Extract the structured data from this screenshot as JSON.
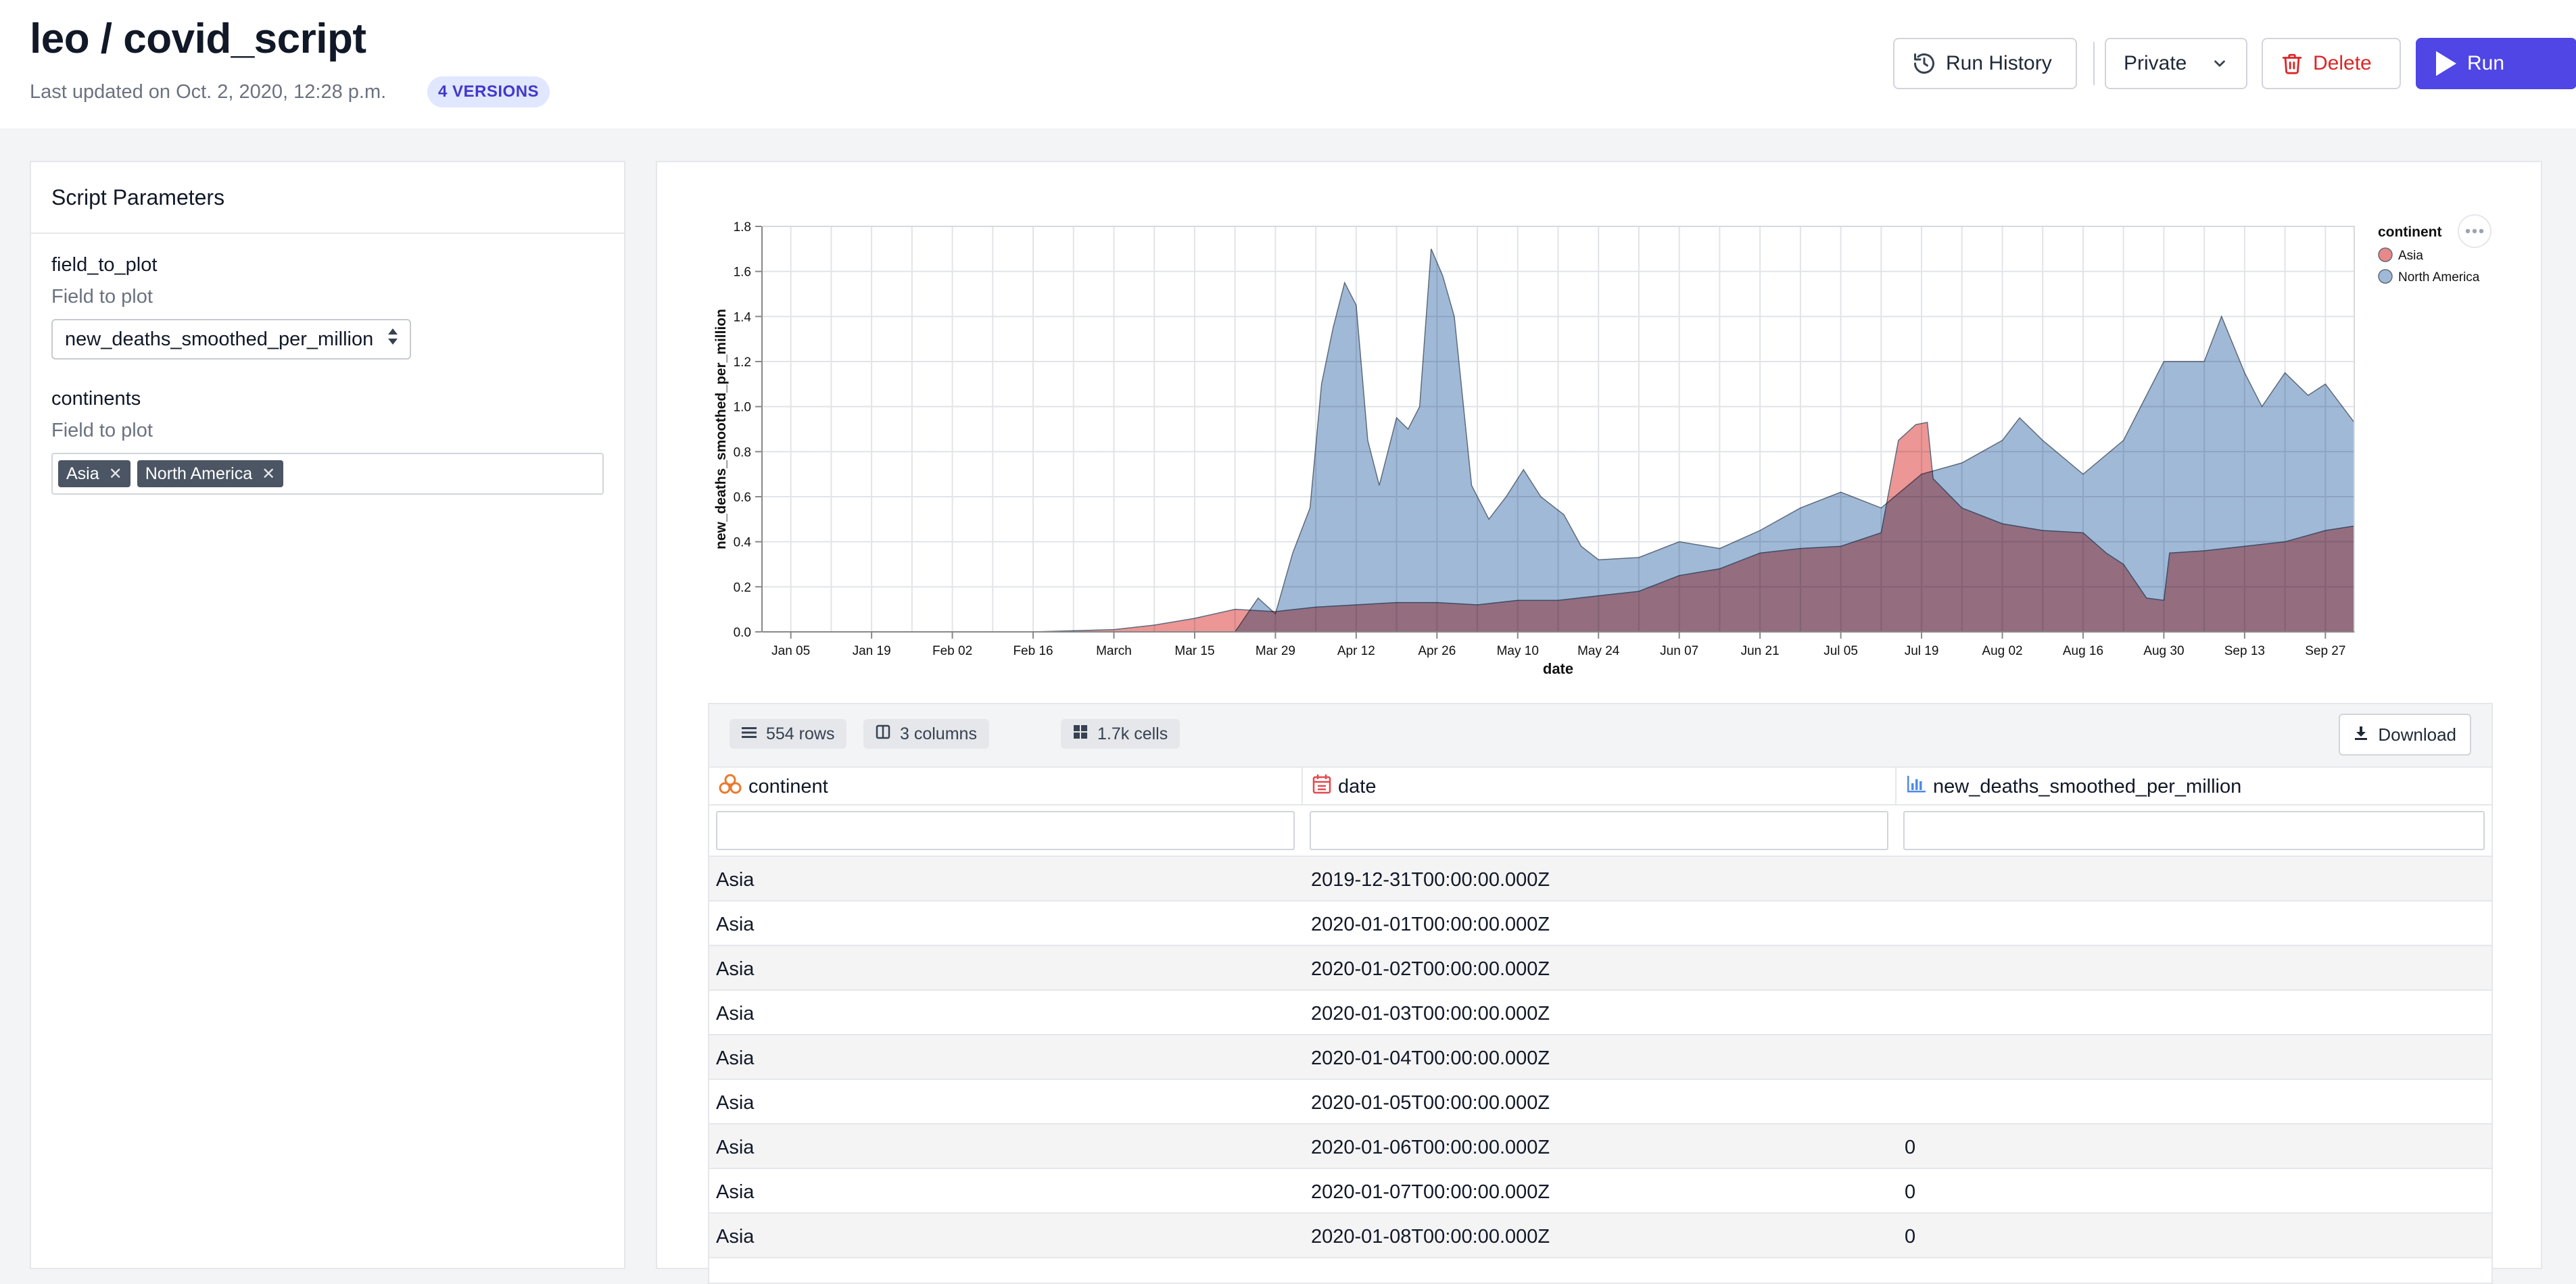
{
  "header": {
    "title": "leo / covid_script",
    "last_updated": "Last updated on Oct. 2, 2020, 12:28 p.m.",
    "versions_badge": "4 VERSIONS",
    "run_history_label": "Run History",
    "visibility_label": "Private",
    "delete_label": "Delete",
    "run_label": "Run"
  },
  "params_panel": {
    "title": "Script Parameters",
    "params": [
      {
        "name": "field_to_plot",
        "description": "Field to plot",
        "value": "new_deaths_smoothed_per_million"
      },
      {
        "name": "continents",
        "description": "Field to plot",
        "tags": [
          "Asia",
          "North America"
        ]
      }
    ]
  },
  "chart_data": {
    "type": "area",
    "xlabel": "date",
    "ylabel": "new_deaths_smoothed_per_million",
    "ylim": [
      0,
      1.8
    ],
    "yticks": [
      "0.0",
      "0.2",
      "0.4",
      "0.6",
      "0.8",
      "1.0",
      "1.2",
      "1.4",
      "1.6",
      "1.8"
    ],
    "xticks": [
      "Jan 05",
      "Jan 19",
      "Feb 02",
      "Feb 16",
      "March",
      "Mar 15",
      "Mar 29",
      "Apr 12",
      "Apr 26",
      "May 10",
      "May 24",
      "Jun 07",
      "Jun 21",
      "Jul 05",
      "Jul 19",
      "Aug 02",
      "Aug 16",
      "Aug 30",
      "Sep 13",
      "Sep 27"
    ],
    "grid": true,
    "legend": {
      "title": "continent",
      "position": "top-right"
    },
    "series": [
      {
        "name": "Asia",
        "color": "#e57373",
        "points": [
          [
            "2019-12-31",
            0
          ],
          [
            "2020-02-16",
            0
          ],
          [
            "2020-03-01",
            0.01
          ],
          [
            "2020-03-08",
            0.03
          ],
          [
            "2020-03-15",
            0.06
          ],
          [
            "2020-03-22",
            0.1
          ],
          [
            "2020-03-29",
            0.09
          ],
          [
            "2020-04-05",
            0.11
          ],
          [
            "2020-04-12",
            0.12
          ],
          [
            "2020-04-19",
            0.13
          ],
          [
            "2020-04-26",
            0.13
          ],
          [
            "2020-05-03",
            0.12
          ],
          [
            "2020-05-10",
            0.14
          ],
          [
            "2020-05-17",
            0.14
          ],
          [
            "2020-05-24",
            0.16
          ],
          [
            "2020-05-31",
            0.18
          ],
          [
            "2020-06-07",
            0.25
          ],
          [
            "2020-06-14",
            0.28
          ],
          [
            "2020-06-21",
            0.35
          ],
          [
            "2020-06-28",
            0.37
          ],
          [
            "2020-07-05",
            0.38
          ],
          [
            "2020-07-12",
            0.44
          ],
          [
            "2020-07-15",
            0.85
          ],
          [
            "2020-07-18",
            0.92
          ],
          [
            "2020-07-20",
            0.93
          ],
          [
            "2020-07-21",
            0.68
          ],
          [
            "2020-07-26",
            0.55
          ],
          [
            "2020-08-02",
            0.48
          ],
          [
            "2020-08-09",
            0.45
          ],
          [
            "2020-08-16",
            0.44
          ],
          [
            "2020-08-20",
            0.35
          ],
          [
            "2020-08-23",
            0.3
          ],
          [
            "2020-08-27",
            0.15
          ],
          [
            "2020-08-30",
            0.14
          ],
          [
            "2020-08-31",
            0.35
          ],
          [
            "2020-09-06",
            0.36
          ],
          [
            "2020-09-13",
            0.38
          ],
          [
            "2020-09-20",
            0.4
          ],
          [
            "2020-09-27",
            0.45
          ],
          [
            "2020-10-02",
            0.47
          ]
        ]
      },
      {
        "name": "North America",
        "color": "#8fadd0",
        "points": [
          [
            "2019-12-31",
            0
          ],
          [
            "2020-03-22",
            0
          ],
          [
            "2020-03-26",
            0.15
          ],
          [
            "2020-03-29",
            0.08
          ],
          [
            "2020-04-01",
            0.35
          ],
          [
            "2020-04-04",
            0.55
          ],
          [
            "2020-04-06",
            1.1
          ],
          [
            "2020-04-08",
            1.35
          ],
          [
            "2020-04-10",
            1.55
          ],
          [
            "2020-04-12",
            1.45
          ],
          [
            "2020-04-14",
            0.85
          ],
          [
            "2020-04-16",
            0.65
          ],
          [
            "2020-04-19",
            0.95
          ],
          [
            "2020-04-21",
            0.9
          ],
          [
            "2020-04-23",
            1.0
          ],
          [
            "2020-04-25",
            1.7
          ],
          [
            "2020-04-27",
            1.58
          ],
          [
            "2020-04-29",
            1.4
          ],
          [
            "2020-05-02",
            0.65
          ],
          [
            "2020-05-05",
            0.5
          ],
          [
            "2020-05-08",
            0.6
          ],
          [
            "2020-05-11",
            0.72
          ],
          [
            "2020-05-14",
            0.6
          ],
          [
            "2020-05-18",
            0.52
          ],
          [
            "2020-05-21",
            0.38
          ],
          [
            "2020-05-24",
            0.32
          ],
          [
            "2020-05-31",
            0.33
          ],
          [
            "2020-06-07",
            0.4
          ],
          [
            "2020-06-14",
            0.37
          ],
          [
            "2020-06-21",
            0.45
          ],
          [
            "2020-06-28",
            0.55
          ],
          [
            "2020-07-05",
            0.62
          ],
          [
            "2020-07-12",
            0.55
          ],
          [
            "2020-07-19",
            0.7
          ],
          [
            "2020-07-26",
            0.75
          ],
          [
            "2020-08-02",
            0.85
          ],
          [
            "2020-08-05",
            0.95
          ],
          [
            "2020-08-09",
            0.85
          ],
          [
            "2020-08-16",
            0.7
          ],
          [
            "2020-08-23",
            0.85
          ],
          [
            "2020-08-30",
            1.2
          ],
          [
            "2020-09-06",
            1.2
          ],
          [
            "2020-09-09",
            1.4
          ],
          [
            "2020-09-13",
            1.15
          ],
          [
            "2020-09-16",
            1.0
          ],
          [
            "2020-09-20",
            1.15
          ],
          [
            "2020-09-24",
            1.05
          ],
          [
            "2020-09-27",
            1.1
          ],
          [
            "2020-10-02",
            0.93
          ]
        ]
      }
    ]
  },
  "table": {
    "rows_label": "554 rows",
    "columns_label": "3 columns",
    "cells_label": "1.7k cells",
    "download_label": "Download",
    "headers": [
      "continent",
      "date",
      "new_deaths_smoothed_per_million"
    ],
    "rows": [
      [
        "Asia",
        "2019-12-31T00:00:00.000Z",
        ""
      ],
      [
        "Asia",
        "2020-01-01T00:00:00.000Z",
        ""
      ],
      [
        "Asia",
        "2020-01-02T00:00:00.000Z",
        ""
      ],
      [
        "Asia",
        "2020-01-03T00:00:00.000Z",
        ""
      ],
      [
        "Asia",
        "2020-01-04T00:00:00.000Z",
        ""
      ],
      [
        "Asia",
        "2020-01-05T00:00:00.000Z",
        ""
      ],
      [
        "Asia",
        "2020-01-06T00:00:00.000Z",
        "0"
      ],
      [
        "Asia",
        "2020-01-07T00:00:00.000Z",
        "0"
      ],
      [
        "Asia",
        "2020-01-08T00:00:00.000Z",
        "0"
      ]
    ]
  }
}
